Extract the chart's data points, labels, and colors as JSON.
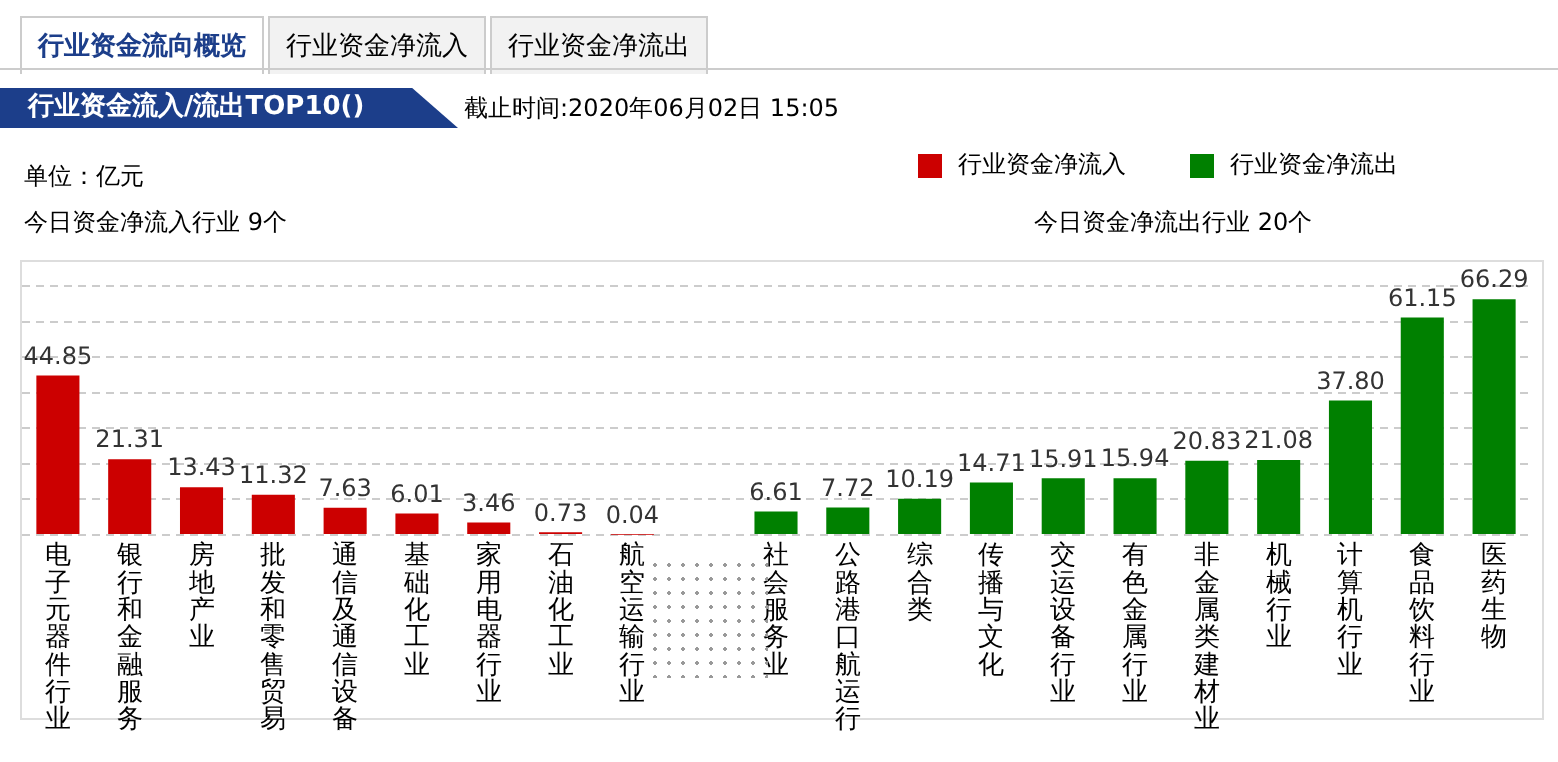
{
  "chart_data": {
    "type": "bar",
    "title": "行业资金流入/流出TOP10()",
    "subtitle": "截止时间:2020年06月02日 15:05",
    "annotations": [
      "行业资金流向概览",
      "行业资金净流入",
      "行业资金净流出",
      "单位：亿元",
      "今日资金净流入行业 9个",
      "今日资金净流出行业 20个"
    ],
    "categories": [
      "电子元器件行业",
      "银行和金融服务",
      "房地产业",
      "批发和零售贸易",
      "通信及通信设备",
      "基础化工业",
      "家用电器行业",
      "石油化工业",
      "航空运输行业",
      null,
      "社会服务业",
      "公路港口航运行",
      "综合类",
      "传播与文化",
      "交运设备行业",
      "有色金属行业",
      "非金属类建材业",
      "机械行业",
      "计算机行业",
      "食品饮料行业",
      "医药生物"
    ],
    "series": [
      {
        "name": "行业资金净流入",
        "color": "#cc0000",
        "values": [
          44.85,
          21.31,
          13.43,
          11.32,
          7.63,
          6.01,
          3.46,
          0.73,
          0.04,
          null,
          null,
          null,
          null,
          null,
          null,
          null,
          null,
          null,
          null,
          null,
          null
        ],
        "value_labels": [
          "44.85",
          "21.31",
          "13.43",
          "11.32",
          "7.63",
          "6.01",
          "3.46",
          "0.73",
          "0.04",
          null,
          null,
          null,
          null,
          null,
          null,
          null,
          null,
          null,
          null,
          null,
          null
        ]
      },
      {
        "name": "行业资金净流出",
        "color": "#008000",
        "values": [
          null,
          null,
          null,
          null,
          null,
          null,
          null,
          null,
          null,
          null,
          6.61,
          7.72,
          10.19,
          14.71,
          15.91,
          15.94,
          20.83,
          21.08,
          37.8,
          61.15,
          66.29
        ],
        "value_labels": [
          null,
          null,
          null,
          null,
          null,
          null,
          null,
          null,
          null,
          null,
          "6.61",
          "7.72",
          "10.19",
          "14.71",
          "15.91",
          "15.94",
          "20.83",
          "21.08",
          "37.80",
          "61.15",
          "66.29"
        ]
      }
    ],
    "tick_labels": "x",
    "grid": "y",
    "legend": "top right"
  }
}
